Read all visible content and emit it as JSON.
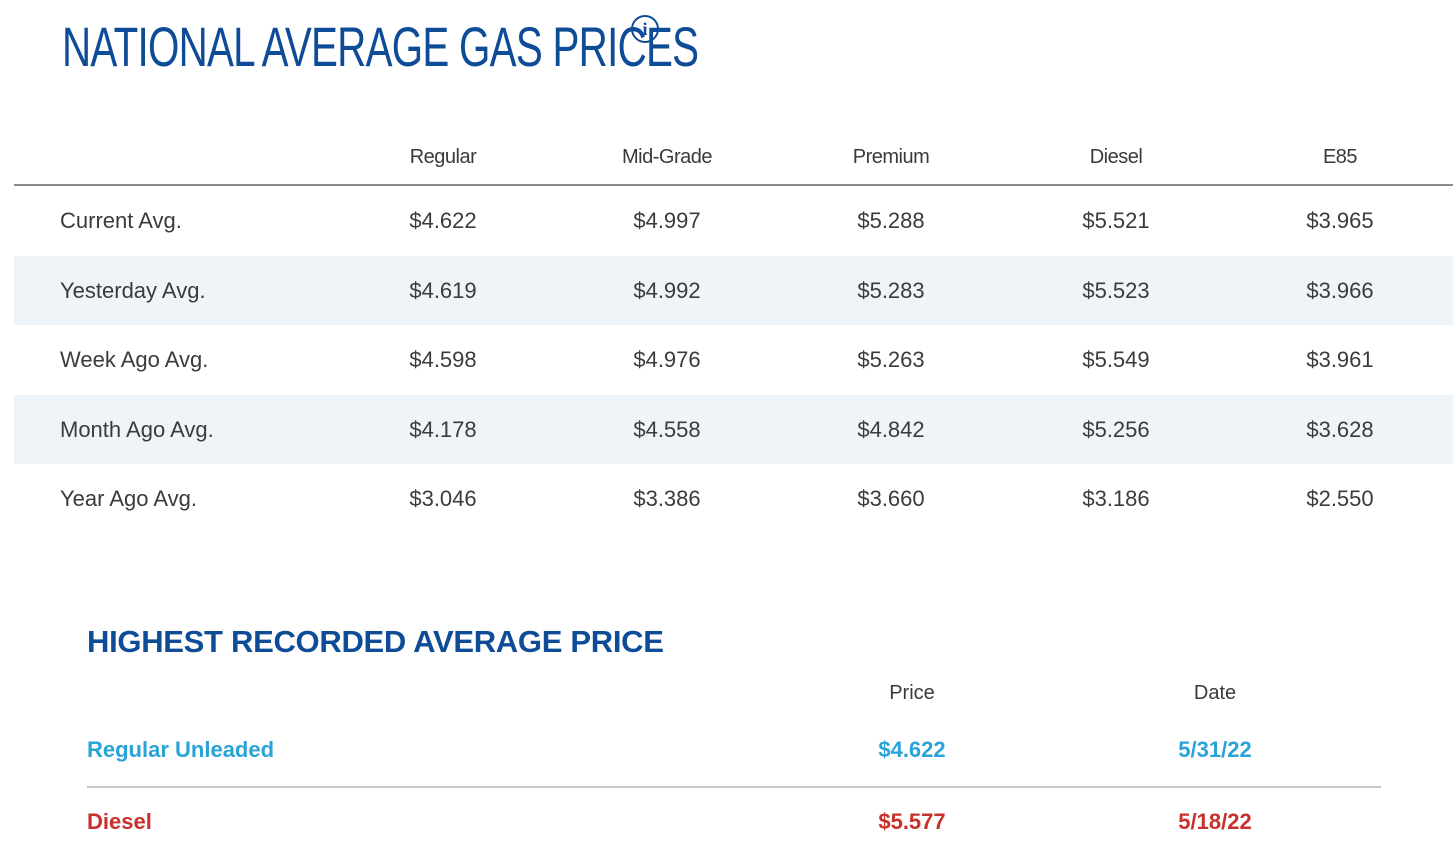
{
  "header": {
    "title": "NATIONAL AVERAGE GAS PRICES",
    "info_icon": "info-circle-icon",
    "title_color": "#0f4c97"
  },
  "price_table": {
    "columns": [
      "Regular",
      "Mid-Grade",
      "Premium",
      "Diesel",
      "E85"
    ],
    "rows": [
      {
        "label": "Current Avg.",
        "values": [
          "$4.622",
          "$4.997",
          "$5.288",
          "$5.521",
          "$3.965"
        ]
      },
      {
        "label": "Yesterday Avg.",
        "values": [
          "$4.619",
          "$4.992",
          "$5.283",
          "$5.523",
          "$3.966"
        ]
      },
      {
        "label": "Week Ago Avg.",
        "values": [
          "$4.598",
          "$4.976",
          "$5.263",
          "$5.549",
          "$3.961"
        ]
      },
      {
        "label": "Month Ago Avg.",
        "values": [
          "$4.178",
          "$4.558",
          "$4.842",
          "$5.256",
          "$3.628"
        ]
      },
      {
        "label": "Year Ago Avg.",
        "values": [
          "$3.046",
          "$3.386",
          "$3.660",
          "$3.186",
          "$2.550"
        ]
      }
    ],
    "stripe_color": "#eef4f8"
  },
  "highest": {
    "title": "HIGHEST RECORDED AVERAGE PRICE",
    "columns": [
      "Price",
      "Date"
    ],
    "rows": [
      {
        "label": "Regular Unleaded",
        "price": "$4.622",
        "date": "5/31/22",
        "color": "#2aa3d6"
      },
      {
        "label": "Diesel",
        "price": "$5.577",
        "date": "5/18/22",
        "color": "#c8302c"
      }
    ]
  }
}
